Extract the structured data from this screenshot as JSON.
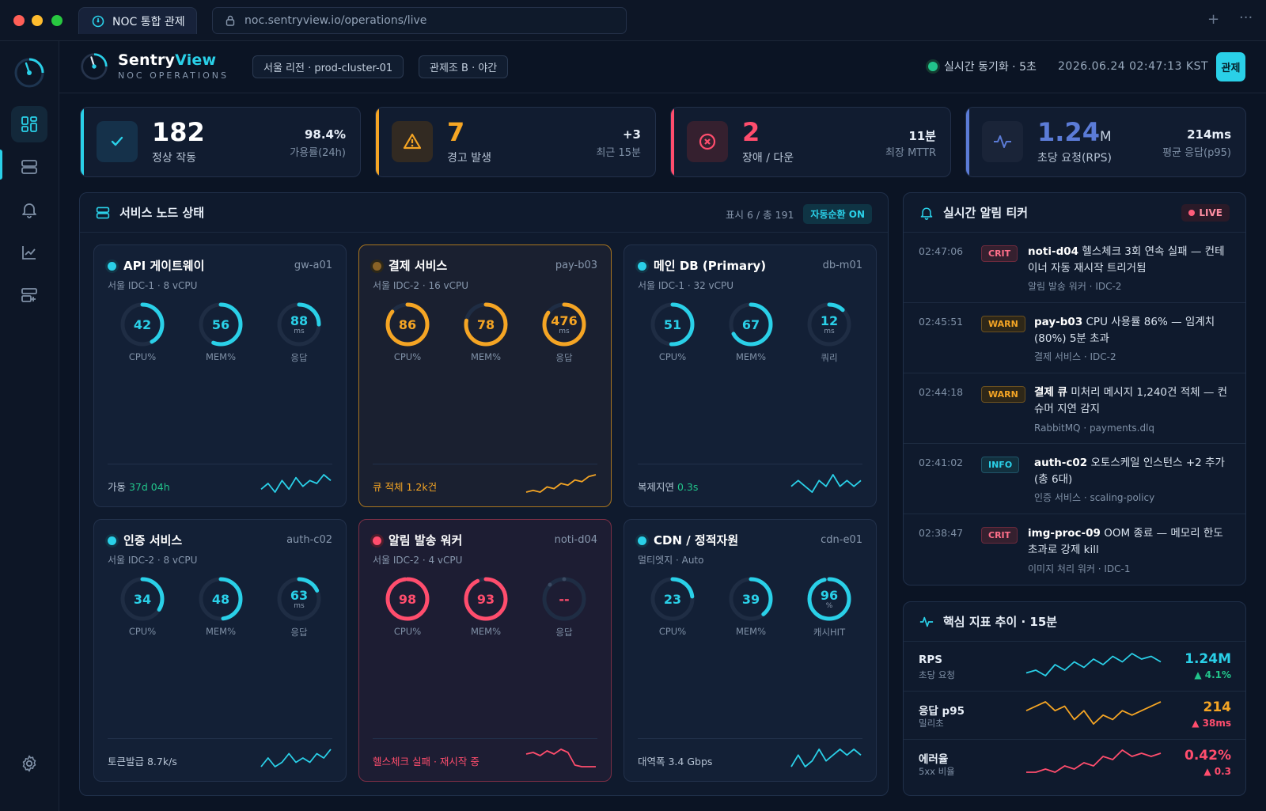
{
  "browser": {
    "tab_title": "NOC 통합 관제",
    "url": "noc.sentryview.io/operations/live"
  },
  "brand": {
    "name_a": "Sentry",
    "name_b": "View",
    "subtitle": "NOC OPERATIONS"
  },
  "topbar": {
    "region_chip": "서울 리전 · prod-cluster-01",
    "shift_chip": "관제조 B · 야간",
    "sync_status": "실시간 동기화 · 5초",
    "datetime": "2026.06.24  02:47:13 KST",
    "role_label": "관제"
  },
  "kpis": [
    {
      "value": "182",
      "unit": "",
      "label": "정상 작동",
      "right_value": "98.4%",
      "right_label": "가용률(24h)",
      "color": "#2ad0e8",
      "icon": "check-icon"
    },
    {
      "value": "7",
      "unit": "",
      "label": "경고 발생",
      "right_value": "+3",
      "right_label": "최근 15분",
      "color": "#f5a524",
      "icon": "warning-icon"
    },
    {
      "value": "2",
      "unit": "",
      "label": "장애 / 다운",
      "right_value": "11분",
      "right_label": "최장 MTTR",
      "color": "#ff4d6d",
      "icon": "error-icon"
    },
    {
      "value": "1.24",
      "unit": "M",
      "label": "초당 요청(RPS)",
      "right_value": "214ms",
      "right_label": "평균 응답(p95)",
      "color": "#5b7bd6",
      "icon": "pulse-icon"
    }
  ],
  "services_panel": {
    "title": "서비스 노드 상태",
    "count_text": "표시 6 / 총 191",
    "auto_rotate": "자동순환 ON"
  },
  "nodes": [
    {
      "name": "API 게이트웨이",
      "id": "gw-a01",
      "sub": "서울 IDC-1 · 8 vCPU",
      "status": "ok",
      "gauges": [
        {
          "value": "42",
          "unit": "",
          "label": "CPU%",
          "pct": 42
        },
        {
          "value": "56",
          "unit": "",
          "label": "MEM%",
          "pct": 56
        },
        {
          "value": "88",
          "unit": "ms",
          "label": "응답",
          "pct": 25
        }
      ],
      "footer_label": "가동 ",
      "footer_value": "37d 04h",
      "spark": [
        6,
        8,
        5,
        9,
        6,
        10,
        7,
        9,
        8,
        11,
        9
      ]
    },
    {
      "name": "결제 서비스",
      "id": "pay-b03",
      "sub": "서울 IDC-2 · 16 vCPU",
      "status": "warn",
      "gauges": [
        {
          "value": "86",
          "unit": "",
          "label": "CPU%",
          "pct": 86
        },
        {
          "value": "78",
          "unit": "",
          "label": "MEM%",
          "pct": 78
        },
        {
          "value": "476",
          "unit": "ms",
          "label": "응답",
          "pct": 85
        }
      ],
      "footer_label": "",
      "footer_value": "큐 적체 1.2k건",
      "spark": [
        3,
        4,
        3,
        6,
        5,
        8,
        7,
        10,
        9,
        12,
        13
      ]
    },
    {
      "name": "메인 DB (Primary)",
      "id": "db-m01",
      "sub": "서울 IDC-1 · 32 vCPU",
      "status": "ok",
      "gauges": [
        {
          "value": "51",
          "unit": "",
          "label": "CPU%",
          "pct": 51
        },
        {
          "value": "67",
          "unit": "",
          "label": "MEM%",
          "pct": 67
        },
        {
          "value": "12",
          "unit": "ms",
          "label": "쿼리",
          "pct": 12
        }
      ],
      "footer_label": "복제지연 ",
      "footer_value": "0.3s",
      "spark": [
        8,
        9,
        8,
        7,
        9,
        8,
        10,
        8,
        9,
        8,
        9
      ]
    },
    {
      "name": "인증 서비스",
      "id": "auth-c02",
      "sub": "서울 IDC-2 · 8 vCPU",
      "status": "ok",
      "gauges": [
        {
          "value": "34",
          "unit": "",
          "label": "CPU%",
          "pct": 34
        },
        {
          "value": "48",
          "unit": "",
          "label": "MEM%",
          "pct": 48
        },
        {
          "value": "63",
          "unit": "ms",
          "label": "응답",
          "pct": 18
        }
      ],
      "footer_label": "",
      "footer_value": "토큰발급 8.7k/s",
      "spark": [
        7,
        9,
        7,
        8,
        10,
        8,
        9,
        8,
        10,
        9,
        11
      ]
    },
    {
      "name": "알림 발송 워커",
      "id": "noti-d04",
      "sub": "서울 IDC-2 · 4 vCPU",
      "status": "crit",
      "gauges": [
        {
          "value": "98",
          "unit": "",
          "label": "CPU%",
          "pct": 98
        },
        {
          "value": "93",
          "unit": "",
          "label": "MEM%",
          "pct": 93
        },
        {
          "value": "--",
          "unit": "",
          "label": "응답",
          "pct": 0
        }
      ],
      "footer_label": "",
      "footer_value": "헬스체크 실패 · 재시작 중",
      "spark": [
        10,
        11,
        9,
        12,
        10,
        13,
        11,
        3,
        2,
        2,
        2
      ]
    },
    {
      "name": "CDN / 정적자원",
      "id": "cdn-e01",
      "sub": "멀티엣지 · Auto",
      "status": "ok",
      "gauges": [
        {
          "value": "23",
          "unit": "",
          "label": "CPU%",
          "pct": 23
        },
        {
          "value": "39",
          "unit": "",
          "label": "MEM%",
          "pct": 39
        },
        {
          "value": "96",
          "unit": "%",
          "label": "캐시HIT",
          "pct": 96
        }
      ],
      "footer_label": "",
      "footer_value": "대역폭 3.4 Gbps",
      "spark": [
        7,
        9,
        7,
        8,
        10,
        8,
        9,
        10,
        9,
        10,
        9
      ]
    }
  ],
  "alerts_panel": {
    "title": "실시간 알림 티커",
    "live": "LIVE"
  },
  "alerts": [
    {
      "time": "02:47:06",
      "level": "CRIT",
      "subject": "noti-d04",
      "message": " 헬스체크 3회 연속 실패 — 컨테이너 자동 재시작 트리거됨",
      "meta": "알림 발송 워커 · IDC-2"
    },
    {
      "time": "02:45:51",
      "level": "WARN",
      "subject": "pay-b03",
      "message": " CPU 사용률 86% — 임계치(80%) 5분 초과",
      "meta": "결제 서비스 · IDC-2"
    },
    {
      "time": "02:44:18",
      "level": "WARN",
      "subject": "결제 큐",
      "message": " 미처리 메시지 1,240건 적체 — 컨슈머 지연 감지",
      "meta": "RabbitMQ · payments.dlq"
    },
    {
      "time": "02:41:02",
      "level": "INFO",
      "subject": "auth-c02",
      "message": " 오토스케일 인스턴스 +2 추가 (총 6대)",
      "meta": "인증 서비스 · scaling-policy"
    },
    {
      "time": "02:38:47",
      "level": "CRIT",
      "subject": "img-proc-09",
      "message": " OOM 종료 — 메모리 한도 초과로 강제 kill",
      "meta": "이미지 처리 워커 · IDC-1"
    }
  ],
  "trends_panel": {
    "title": "핵심 지표 추이 · 15분"
  },
  "trends": [
    {
      "name": "RPS",
      "sub": "초당 요청",
      "value": "1.24M",
      "delta": "▲ 4.1%",
      "color": "#2ad0e8",
      "delta_color": "#22c58b",
      "spark": [
        6,
        7,
        5,
        9,
        7,
        10,
        8,
        11,
        9,
        12,
        10,
        13,
        11,
        12,
        10
      ]
    },
    {
      "name": "응답 p95",
      "sub": "밀리초",
      "value": "214",
      "delta": "▲ 38ms",
      "color": "#f5a524",
      "delta_color": "#ff4d6d",
      "spark": [
        9,
        10,
        11,
        9,
        10,
        7,
        9,
        6,
        8,
        7,
        9,
        8,
        9,
        10,
        11
      ]
    },
    {
      "name": "에러율",
      "sub": "5xx 비율",
      "value": "0.42%",
      "delta": "▲ 0.3",
      "color": "#ff4d6d",
      "delta_color": "#ff4d6d",
      "spark": [
        3,
        3,
        4,
        3,
        5,
        4,
        6,
        5,
        8,
        7,
        10,
        8,
        9,
        8,
        9
      ]
    }
  ],
  "colors": {
    "ok": "#2ad0e8",
    "warn": "#f5a524",
    "crit": "#ff4d6d",
    "info": "#2ad0e8"
  }
}
